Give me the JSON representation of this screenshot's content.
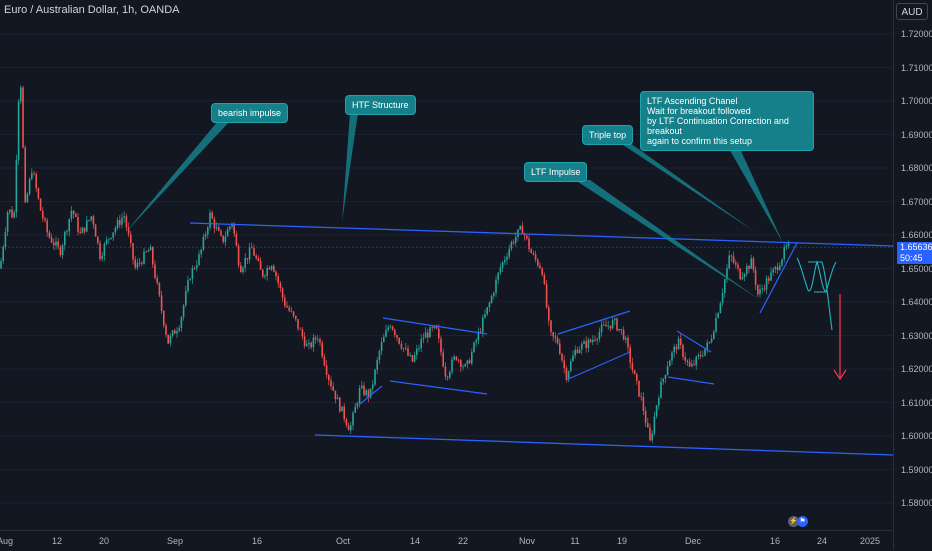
{
  "header": {
    "symbol_title": "Euro / Australian Dollar, 1h, OANDA",
    "currency": "AUD"
  },
  "price_scale": {
    "ticks": [
      "1.72000",
      "1.71000",
      "1.70000",
      "1.69000",
      "1.68000",
      "1.67000",
      "1.66000",
      "1.65000",
      "1.64000",
      "1.63000",
      "1.62000",
      "1.61000",
      "1.60000",
      "1.59000",
      "1.58000"
    ],
    "last_price": "1.65636",
    "countdown": "50:45"
  },
  "time_scale": {
    "ticks": [
      "Aug",
      "12",
      "20",
      "Sep",
      "16",
      "Oct",
      "14",
      "22",
      "Nov",
      "11",
      "19",
      "Dec",
      "16",
      "24",
      "2025"
    ]
  },
  "annotations": {
    "bearish_impulse": "bearish impulse",
    "htf_structure": "HTF Structure",
    "ltf_impulse": "LTF Impulse",
    "triple_top": "Triple top",
    "ltf_channel_lines": [
      "LTF Ascending Chanel",
      "Wait for breakout followed",
      "by LTF Continuation Correction and breakout",
      "again to confirm this setup"
    ]
  },
  "colors": {
    "background": "#131722",
    "up_candle": "#26a69a",
    "down_candle": "#ef5350",
    "trendline": "#2962ff",
    "callout": "#157f8a",
    "projection": "#22b5bf",
    "arrow": "#f23645"
  },
  "chart_data": {
    "type": "candlestick",
    "x": [
      "Aug",
      "12",
      "20",
      "Sep",
      "16",
      "Oct",
      "14",
      "22",
      "Nov",
      "11",
      "19",
      "Dec",
      "16",
      "24"
    ],
    "close": [
      1.6625,
      1.66,
      1.656,
      1.648,
      1.652,
      1.615,
      1.632,
      1.618,
      1.66,
      1.623,
      1.605,
      1.64,
      1.645,
      1.6564
    ],
    "ylim": [
      1.575,
      1.725
    ],
    "last_price": 1.65636
  }
}
